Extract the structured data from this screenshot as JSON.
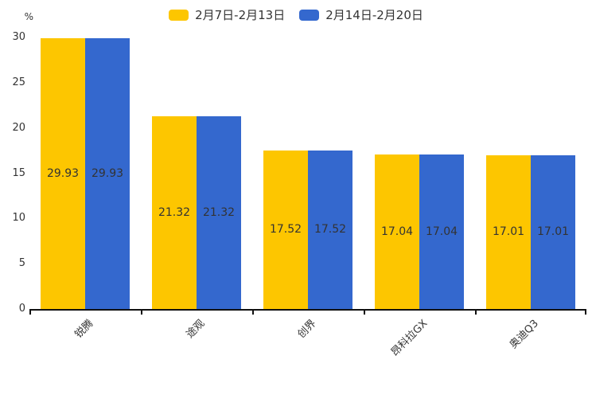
{
  "chart_data": {
    "type": "bar",
    "title": "",
    "xlabel": "",
    "ylabel": "%",
    "ylim": [
      0,
      30
    ],
    "yticks": [
      0,
      5,
      10,
      15,
      20,
      25,
      30
    ],
    "grid": false,
    "legend_position": "top-center",
    "categories": [
      "锐腾",
      "途观",
      "创界",
      "昂科拉GX",
      "奥迪Q3"
    ],
    "series": [
      {
        "name": "2月7日-2月13日",
        "color": "#FDC600",
        "values": [
          29.93,
          21.32,
          17.52,
          17.04,
          17.01
        ]
      },
      {
        "name": "2月14日-2月20日",
        "color": "#3468CE",
        "values": [
          29.93,
          21.32,
          17.52,
          17.04,
          17.01
        ]
      }
    ],
    "value_label_decimals": 2,
    "colors": {
      "axis": "#111111",
      "text": "#333333",
      "background": "#ffffff"
    }
  }
}
